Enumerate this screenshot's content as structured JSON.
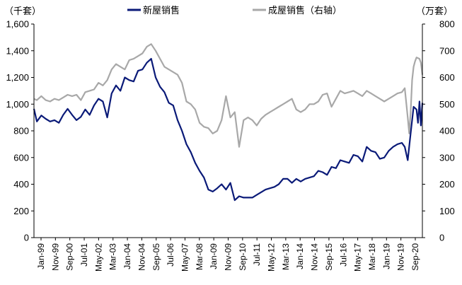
{
  "chart_data": {
    "type": "line",
    "title": "",
    "left_unit": "（千套）",
    "right_unit": "（万套）",
    "legend_position": "top-center",
    "grid": false,
    "y_left": {
      "min": 0,
      "max": 1600,
      "step": 200,
      "tick_labels": [
        "0",
        "200",
        "400",
        "600",
        "800",
        "1,000",
        "1,200",
        "1,400",
        "1,600"
      ]
    },
    "y_right": {
      "min": 0,
      "max": 800,
      "step": 100,
      "tick_labels": [
        "0",
        "100",
        "200",
        "300",
        "400",
        "500",
        "600",
        "700",
        "800"
      ]
    },
    "x_tick_labels": [
      "Jan-99",
      "Nov-99",
      "Sep-00",
      "Jul-01",
      "May-02",
      "Mar-03",
      "Jan-04",
      "Nov-04",
      "Sep-05",
      "Jul-06",
      "May-07",
      "Mar-08",
      "Jan-09",
      "Nov-09",
      "Sep-10",
      "Jul-11",
      "May-12",
      "Mar-13",
      "Jan-14",
      "Nov-14",
      "Sep-15",
      "Jul-16",
      "May-17",
      "Mar-18",
      "Jan-19",
      "Nov-19",
      "Sep-20"
    ],
    "x_range": [
      "1999-01",
      "2021-02"
    ],
    "series": [
      {
        "name": "新屋销售",
        "axis": "left",
        "color": "#0a1a78",
        "points": [
          [
            "1999-01",
            965
          ],
          [
            "1999-03",
            870
          ],
          [
            "1999-06",
            915
          ],
          [
            "1999-09",
            890
          ],
          [
            "1999-12",
            870
          ],
          [
            "2000-03",
            880
          ],
          [
            "2000-06",
            860
          ],
          [
            "2000-09",
            920
          ],
          [
            "2000-12",
            965
          ],
          [
            "2001-03",
            920
          ],
          [
            "2001-06",
            880
          ],
          [
            "2001-09",
            905
          ],
          [
            "2001-12",
            960
          ],
          [
            "2002-03",
            920
          ],
          [
            "2002-06",
            990
          ],
          [
            "2002-09",
            1040
          ],
          [
            "2002-12",
            1020
          ],
          [
            "2003-03",
            900
          ],
          [
            "2003-06",
            1080
          ],
          [
            "2003-09",
            1140
          ],
          [
            "2003-12",
            1100
          ],
          [
            "2004-03",
            1200
          ],
          [
            "2004-06",
            1180
          ],
          [
            "2004-09",
            1170
          ],
          [
            "2004-12",
            1250
          ],
          [
            "2005-03",
            1260
          ],
          [
            "2005-06",
            1310
          ],
          [
            "2005-09",
            1340
          ],
          [
            "2005-12",
            1200
          ],
          [
            "2006-03",
            1130
          ],
          [
            "2006-06",
            1090
          ],
          [
            "2006-09",
            1010
          ],
          [
            "2006-12",
            990
          ],
          [
            "2007-03",
            880
          ],
          [
            "2007-06",
            800
          ],
          [
            "2007-09",
            700
          ],
          [
            "2007-12",
            640
          ],
          [
            "2008-03",
            560
          ],
          [
            "2008-06",
            500
          ],
          [
            "2008-09",
            450
          ],
          [
            "2008-12",
            360
          ],
          [
            "2009-03",
            345
          ],
          [
            "2009-06",
            370
          ],
          [
            "2009-09",
            400
          ],
          [
            "2009-12",
            360
          ],
          [
            "2010-03",
            410
          ],
          [
            "2010-06",
            280
          ],
          [
            "2010-09",
            310
          ],
          [
            "2010-12",
            300
          ],
          [
            "2011-03",
            300
          ],
          [
            "2011-06",
            300
          ],
          [
            "2011-09",
            320
          ],
          [
            "2011-12",
            340
          ],
          [
            "2012-03",
            360
          ],
          [
            "2012-06",
            370
          ],
          [
            "2012-09",
            380
          ],
          [
            "2012-12",
            400
          ],
          [
            "2013-03",
            440
          ],
          [
            "2013-06",
            440
          ],
          [
            "2013-09",
            410
          ],
          [
            "2013-12",
            440
          ],
          [
            "2014-03",
            420
          ],
          [
            "2014-06",
            440
          ],
          [
            "2014-09",
            450
          ],
          [
            "2014-12",
            460
          ],
          [
            "2015-03",
            500
          ],
          [
            "2015-06",
            490
          ],
          [
            "2015-09",
            470
          ],
          [
            "2015-12",
            530
          ],
          [
            "2016-03",
            520
          ],
          [
            "2016-06",
            580
          ],
          [
            "2016-09",
            570
          ],
          [
            "2016-12",
            560
          ],
          [
            "2017-03",
            620
          ],
          [
            "2017-06",
            610
          ],
          [
            "2017-09",
            570
          ],
          [
            "2017-12",
            680
          ],
          [
            "2018-03",
            650
          ],
          [
            "2018-06",
            640
          ],
          [
            "2018-09",
            590
          ],
          [
            "2018-12",
            600
          ],
          [
            "2019-03",
            650
          ],
          [
            "2019-06",
            680
          ],
          [
            "2019-09",
            700
          ],
          [
            "2019-12",
            710
          ],
          [
            "2020-02",
            680
          ],
          [
            "2020-04",
            580
          ],
          [
            "2020-06",
            780
          ],
          [
            "2020-08",
            980
          ],
          [
            "2020-10",
            960
          ],
          [
            "2020-11",
            860
          ],
          [
            "2020-12",
            1020
          ],
          [
            "2021-01",
            840
          ],
          [
            "2021-02",
            1010
          ]
        ]
      },
      {
        "name": "成屋销售（右轴）",
        "axis": "right",
        "color": "#a8a8a8",
        "points": [
          [
            "1999-01",
            520
          ],
          [
            "1999-03",
            515
          ],
          [
            "1999-06",
            530
          ],
          [
            "1999-09",
            515
          ],
          [
            "1999-12",
            510
          ],
          [
            "2000-03",
            520
          ],
          [
            "2000-06",
            515
          ],
          [
            "2000-09",
            525
          ],
          [
            "2000-12",
            535
          ],
          [
            "2001-03",
            530
          ],
          [
            "2001-06",
            535
          ],
          [
            "2001-09",
            515
          ],
          [
            "2001-12",
            545
          ],
          [
            "2002-03",
            550
          ],
          [
            "2002-06",
            555
          ],
          [
            "2002-09",
            580
          ],
          [
            "2002-12",
            570
          ],
          [
            "2003-03",
            590
          ],
          [
            "2003-06",
            630
          ],
          [
            "2003-09",
            650
          ],
          [
            "2003-12",
            640
          ],
          [
            "2004-03",
            630
          ],
          [
            "2004-06",
            665
          ],
          [
            "2004-09",
            670
          ],
          [
            "2004-12",
            680
          ],
          [
            "2005-03",
            690
          ],
          [
            "2005-06",
            715
          ],
          [
            "2005-09",
            725
          ],
          [
            "2005-12",
            700
          ],
          [
            "2006-03",
            670
          ],
          [
            "2006-06",
            640
          ],
          [
            "2006-09",
            630
          ],
          [
            "2006-12",
            620
          ],
          [
            "2007-03",
            610
          ],
          [
            "2007-06",
            580
          ],
          [
            "2007-09",
            510
          ],
          [
            "2007-12",
            500
          ],
          [
            "2008-03",
            480
          ],
          [
            "2008-06",
            430
          ],
          [
            "2008-09",
            415
          ],
          [
            "2008-12",
            410
          ],
          [
            "2009-03",
            390
          ],
          [
            "2009-06",
            400
          ],
          [
            "2009-09",
            440
          ],
          [
            "2009-12",
            530
          ],
          [
            "2010-03",
            450
          ],
          [
            "2010-06",
            470
          ],
          [
            "2010-09",
            340
          ],
          [
            "2010-12",
            440
          ],
          [
            "2011-03",
            450
          ],
          [
            "2011-06",
            440
          ],
          [
            "2011-09",
            420
          ],
          [
            "2011-12",
            445
          ],
          [
            "2012-03",
            460
          ],
          [
            "2012-06",
            470
          ],
          [
            "2012-09",
            480
          ],
          [
            "2012-12",
            490
          ],
          [
            "2013-03",
            500
          ],
          [
            "2013-06",
            510
          ],
          [
            "2013-09",
            520
          ],
          [
            "2013-12",
            480
          ],
          [
            "2014-03",
            470
          ],
          [
            "2014-06",
            480
          ],
          [
            "2014-09",
            500
          ],
          [
            "2014-12",
            500
          ],
          [
            "2015-03",
            510
          ],
          [
            "2015-06",
            535
          ],
          [
            "2015-09",
            540
          ],
          [
            "2015-12",
            490
          ],
          [
            "2016-03",
            520
          ],
          [
            "2016-06",
            550
          ],
          [
            "2016-09",
            540
          ],
          [
            "2016-12",
            545
          ],
          [
            "2017-03",
            550
          ],
          [
            "2017-06",
            540
          ],
          [
            "2017-09",
            530
          ],
          [
            "2017-12",
            550
          ],
          [
            "2018-03",
            540
          ],
          [
            "2018-06",
            530
          ],
          [
            "2018-09",
            520
          ],
          [
            "2018-12",
            510
          ],
          [
            "2019-03",
            520
          ],
          [
            "2019-06",
            530
          ],
          [
            "2019-09",
            540
          ],
          [
            "2019-12",
            545
          ],
          [
            "2020-02",
            560
          ],
          [
            "2020-04",
            450
          ],
          [
            "2020-05",
            390
          ],
          [
            "2020-06",
            470
          ],
          [
            "2020-07",
            590
          ],
          [
            "2020-08",
            640
          ],
          [
            "2020-09",
            660
          ],
          [
            "2020-10",
            675
          ],
          [
            "2020-12",
            670
          ],
          [
            "2021-01",
            655
          ],
          [
            "2021-02",
            610
          ]
        ]
      }
    ]
  }
}
